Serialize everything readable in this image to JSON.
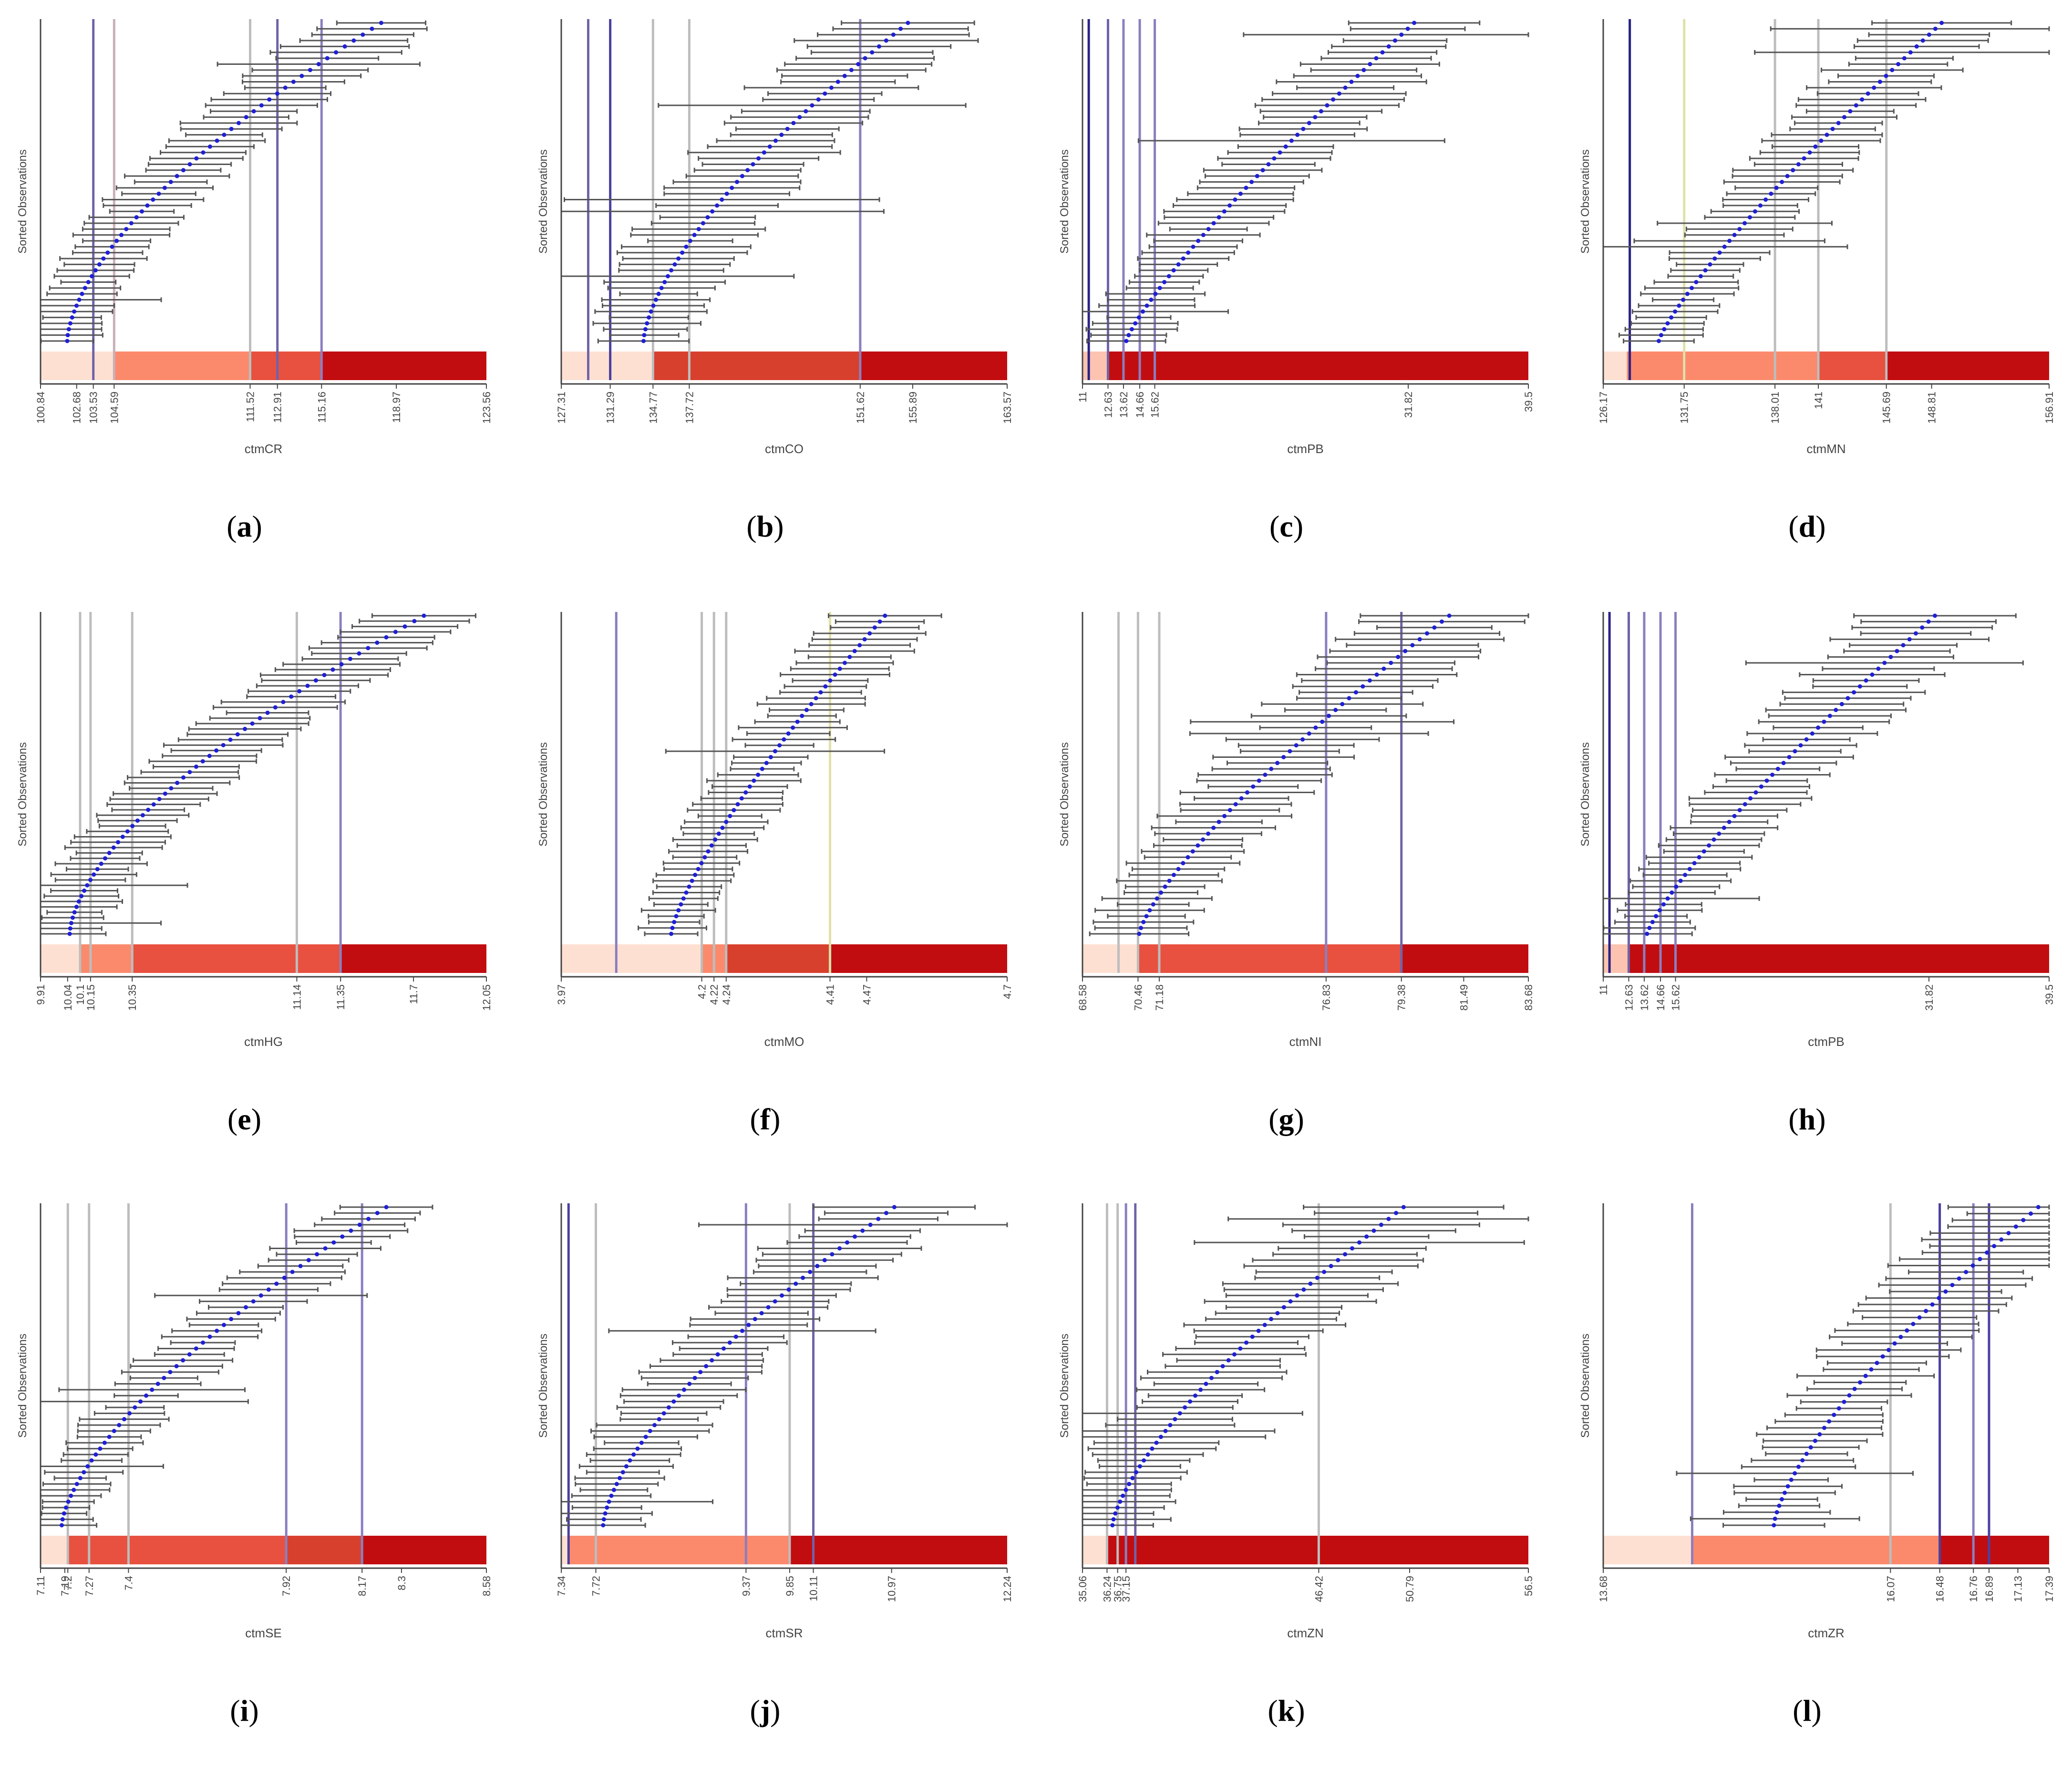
{
  "figure": {
    "title": "",
    "y_axis_label": "Sorted Observations"
  },
  "chart_data": [
    {
      "type": "errorbar",
      "panel_label": "a",
      "xlabel": "ctmCR",
      "ylabel": "Sorted Observations",
      "xlim": [
        100.84,
        123.56
      ],
      "x_ticks": [
        "100.84",
        "102.68",
        "103.53",
        "104.59",
        "111.52",
        "112.91",
        "115.16",
        "118.97",
        "123.56"
      ],
      "reference_lines": [
        {
          "value": 103.53,
          "color": "#6f63a8"
        },
        {
          "value": 104.59,
          "color": "#c9b0b8"
        },
        {
          "value": 111.52,
          "color": "#bdbdbd"
        },
        {
          "value": 112.91,
          "color": "#6f63a8"
        },
        {
          "value": 115.16,
          "color": "#8a7fc0"
        }
      ],
      "color_bands": [
        {
          "from": 100.84,
          "to": 104.59,
          "color": "#fee0d2"
        },
        {
          "from": 104.59,
          "to": 111.52,
          "color": "#fb8a6c"
        },
        {
          "from": 111.52,
          "to": 115.16,
          "color": "#e8513f"
        },
        {
          "from": 115.16,
          "to": 123.56,
          "color": "#c20d10"
        }
      ],
      "observations": {
        "count": 55,
        "min_mean": 102.2,
        "max_mean": 118.2,
        "mean_curvature": 1.6,
        "half_width": 2.0
      }
    },
    {
      "type": "errorbar",
      "panel_label": "b",
      "xlabel": "ctmCO",
      "ylabel": "Sorted Observations",
      "xlim": [
        127.31,
        163.57
      ],
      "x_ticks": [
        "127.31",
        "131.29",
        "134.77",
        "137.72",
        "151.62",
        "155.89",
        "163.57"
      ],
      "reference_lines": [
        {
          "value": 129.5,
          "color": "#6f63a8"
        },
        {
          "value": 131.29,
          "color": "#4a40a0"
        },
        {
          "value": 134.77,
          "color": "#bdbdbd"
        },
        {
          "value": 137.72,
          "color": "#bdbdbd"
        },
        {
          "value": 151.62,
          "color": "#8a7fc0"
        }
      ],
      "color_bands": [
        {
          "from": 127.31,
          "to": 134.77,
          "color": "#fee0d2"
        },
        {
          "from": 134.77,
          "to": 151.62,
          "color": "#d8402e"
        },
        {
          "from": 151.62,
          "to": 163.57,
          "color": "#c20d10"
        }
      ],
      "observations": {
        "count": 55,
        "min_mean": 134.0,
        "max_mean": 155.5,
        "mean_curvature": 1.5,
        "half_width": 4.5
      }
    },
    {
      "type": "errorbar",
      "panel_label": "c",
      "xlabel": "ctmPB",
      "ylabel": "Sorted Observations",
      "xlim": [
        11,
        39.5
      ],
      "x_ticks": [
        "11",
        "12.63",
        "13.62",
        "14.66",
        "15.62",
        "31.82",
        "39.5"
      ],
      "reference_lines": [
        {
          "value": 11.4,
          "color": "#2a2288"
        },
        {
          "value": 12.63,
          "color": "#6f63a8"
        },
        {
          "value": 13.62,
          "color": "#8a7fc0"
        },
        {
          "value": 14.66,
          "color": "#8a7fc0"
        },
        {
          "value": 15.62,
          "color": "#8a7fc0"
        }
      ],
      "color_bands": [
        {
          "from": 11,
          "to": 12.63,
          "color": "#fcc3b0"
        },
        {
          "from": 12.63,
          "to": 39.5,
          "color": "#c20d10"
        }
      ],
      "observations": {
        "count": 55,
        "min_mean": 13.8,
        "max_mean": 32.2,
        "mean_curvature": 1.2,
        "half_width": 3.0
      }
    },
    {
      "type": "errorbar",
      "panel_label": "d",
      "xlabel": "ctmMN",
      "ylabel": "Sorted Observations",
      "xlim": [
        126.17,
        156.91
      ],
      "x_ticks": [
        "126.17",
        "131.75",
        "138.01",
        "141",
        "145.69",
        "148.81",
        "156.91"
      ],
      "reference_lines": [
        {
          "value": 128.0,
          "color": "#2a2288"
        },
        {
          "value": 131.75,
          "color": "#e0e0a8"
        },
        {
          "value": 138.01,
          "color": "#bdbdbd"
        },
        {
          "value": 141,
          "color": "#bdbdbd"
        },
        {
          "value": 145.69,
          "color": "#bdbdbd"
        }
      ],
      "color_bands": [
        {
          "from": 126.17,
          "to": 127.8,
          "color": "#fee0d2"
        },
        {
          "from": 127.8,
          "to": 141,
          "color": "#fb8a6c"
        },
        {
          "from": 141,
          "to": 145.69,
          "color": "#e8513f"
        },
        {
          "from": 145.69,
          "to": 156.91,
          "color": "#c20d10"
        }
      ],
      "observations": {
        "count": 55,
        "min_mean": 130.0,
        "max_mean": 149.5,
        "mean_curvature": 1.2,
        "half_width": 3.0
      }
    },
    {
      "type": "errorbar",
      "panel_label": "e",
      "xlabel": "ctmHG",
      "ylabel": "Sorted Observations",
      "xlim": [
        9.91,
        12.05
      ],
      "x_ticks": [
        "9.91",
        "10.04",
        "10.1",
        "10.15",
        "10.35",
        "11.14",
        "11.35",
        "11.7",
        "12.05"
      ],
      "reference_lines": [
        {
          "value": 10.1,
          "color": "#bdbdbd"
        },
        {
          "value": 10.15,
          "color": "#bdbdbd"
        },
        {
          "value": 10.35,
          "color": "#bdbdbd"
        },
        {
          "value": 11.14,
          "color": "#bdbdbd"
        },
        {
          "value": 11.35,
          "color": "#8a7fc0"
        }
      ],
      "color_bands": [
        {
          "from": 9.91,
          "to": 10.1,
          "color": "#fee0d2"
        },
        {
          "from": 10.1,
          "to": 10.35,
          "color": "#fb8a6c"
        },
        {
          "from": 10.35,
          "to": 11.35,
          "color": "#e8513f"
        },
        {
          "from": 11.35,
          "to": 12.05,
          "color": "#c20d10"
        }
      ],
      "observations": {
        "count": 60,
        "min_mean": 10.05,
        "max_mean": 11.75,
        "mean_curvature": 1.6,
        "half_width": 0.2
      }
    },
    {
      "type": "errorbar",
      "panel_label": "f",
      "xlabel": "ctmMO",
      "ylabel": "Sorted Observations",
      "xlim": [
        3.97,
        4.7
      ],
      "x_ticks": [
        "3.97",
        "4.2",
        "4.22",
        "4.24",
        "4.41",
        "4.47",
        "4.7"
      ],
      "reference_lines": [
        {
          "value": 4.06,
          "color": "#8a7fc0"
        },
        {
          "value": 4.2,
          "color": "#bdbdbd"
        },
        {
          "value": 4.22,
          "color": "#bdbdbd"
        },
        {
          "value": 4.24,
          "color": "#bdbdbd"
        },
        {
          "value": 4.41,
          "color": "#e0e0a8"
        }
      ],
      "color_bands": [
        {
          "from": 3.97,
          "to": 4.2,
          "color": "#fee0d2"
        },
        {
          "from": 4.2,
          "to": 4.24,
          "color": "#fb8a6c"
        },
        {
          "from": 4.24,
          "to": 4.41,
          "color": "#d8402e"
        },
        {
          "from": 4.41,
          "to": 4.7,
          "color": "#c20d10"
        }
      ],
      "observations": {
        "count": 55,
        "min_mean": 4.15,
        "max_mean": 4.5,
        "mean_curvature": 1.3,
        "half_width": 0.06
      }
    },
    {
      "type": "errorbar",
      "panel_label": "g",
      "xlabel": "ctmNI",
      "ylabel": "Sorted Observations",
      "xlim": [
        68.58,
        83.68
      ],
      "x_ticks": [
        "68.58",
        "70.46",
        "71.18",
        "76.83",
        "79.38",
        "81.49",
        "83.68"
      ],
      "reference_lines": [
        {
          "value": 69.8,
          "color": "#bdbdbd"
        },
        {
          "value": 70.46,
          "color": "#bdbdbd"
        },
        {
          "value": 71.18,
          "color": "#bdbdbd"
        },
        {
          "value": 76.83,
          "color": "#8a7fc0"
        },
        {
          "value": 79.38,
          "color": "#6f63a8"
        }
      ],
      "color_bands": [
        {
          "from": 68.58,
          "to": 70.46,
          "color": "#fee0d2"
        },
        {
          "from": 70.46,
          "to": 79.38,
          "color": "#e8513f"
        },
        {
          "from": 79.38,
          "to": 83.68,
          "color": "#c20d10"
        }
      ],
      "observations": {
        "count": 55,
        "min_mean": 70.5,
        "max_mean": 81.0,
        "mean_curvature": 1.3,
        "half_width": 1.8
      }
    },
    {
      "type": "errorbar",
      "panel_label": "h",
      "xlabel": "ctmPB",
      "ylabel": "Sorted Observations",
      "xlim": [
        11,
        39.5
      ],
      "x_ticks": [
        "11",
        "12.63",
        "13.62",
        "14.66",
        "15.62",
        "31.82",
        "39.5"
      ],
      "reference_lines": [
        {
          "value": 11.4,
          "color": "#2a2288"
        },
        {
          "value": 12.63,
          "color": "#6f63a8"
        },
        {
          "value": 13.62,
          "color": "#8a7fc0"
        },
        {
          "value": 14.66,
          "color": "#8a7fc0"
        },
        {
          "value": 15.62,
          "color": "#8a7fc0"
        }
      ],
      "color_bands": [
        {
          "from": 11,
          "to": 12.63,
          "color": "#fcc3b0"
        },
        {
          "from": 12.63,
          "to": 39.5,
          "color": "#c20d10"
        }
      ],
      "observations": {
        "count": 55,
        "min_mean": 13.8,
        "max_mean": 32.2,
        "mean_curvature": 1.2,
        "half_width": 3.0
      }
    },
    {
      "type": "errorbar",
      "panel_label": "i",
      "xlabel": "ctmSE",
      "ylabel": "Sorted Observations",
      "xlim": [
        7.11,
        8.58
      ],
      "x_ticks": [
        "7.11",
        "7.19",
        "7.2",
        "7.27",
        "7.4",
        "7.92",
        "8.17",
        "8.3",
        "8.58"
      ],
      "reference_lines": [
        {
          "value": 7.2,
          "color": "#bdbdbd"
        },
        {
          "value": 7.27,
          "color": "#bdbdbd"
        },
        {
          "value": 7.4,
          "color": "#bdbdbd"
        },
        {
          "value": 7.92,
          "color": "#8a7fc0"
        },
        {
          "value": 8.17,
          "color": "#8a7fc0"
        }
      ],
      "color_bands": [
        {
          "from": 7.11,
          "to": 7.2,
          "color": "#fee0d2"
        },
        {
          "from": 7.2,
          "to": 7.92,
          "color": "#e8513f"
        },
        {
          "from": 7.92,
          "to": 8.17,
          "color": "#d8402e"
        },
        {
          "from": 8.17,
          "to": 8.58,
          "color": "#c20d10"
        }
      ],
      "observations": {
        "count": 55,
        "min_mean": 7.18,
        "max_mean": 8.25,
        "mean_curvature": 1.5,
        "half_width": 0.12
      }
    },
    {
      "type": "errorbar",
      "panel_label": "j",
      "xlabel": "ctmSR",
      "ylabel": "Sorted Observations",
      "xlim": [
        7.34,
        12.24
      ],
      "x_ticks": [
        "7.34",
        "7.72",
        "9.37",
        "9.85",
        "10.11",
        "10.97",
        "12.24"
      ],
      "reference_lines": [
        {
          "value": 7.42,
          "color": "#4a40a0"
        },
        {
          "value": 7.72,
          "color": "#bdbdbd"
        },
        {
          "value": 9.37,
          "color": "#8a7fc0"
        },
        {
          "value": 9.85,
          "color": "#bdbdbd"
        },
        {
          "value": 10.11,
          "color": "#6f63a8"
        }
      ],
      "color_bands": [
        {
          "from": 7.34,
          "to": 7.42,
          "color": "#fee0d2"
        },
        {
          "from": 7.42,
          "to": 9.85,
          "color": "#fb8a6c"
        },
        {
          "from": 9.85,
          "to": 12.24,
          "color": "#c20d10"
        }
      ],
      "observations": {
        "count": 55,
        "min_mean": 7.8,
        "max_mean": 11.0,
        "mean_curvature": 1.5,
        "half_width": 0.55
      }
    },
    {
      "type": "errorbar",
      "panel_label": "k",
      "xlabel": "ctmZN",
      "ylabel": "Sorted Observations",
      "xlim": [
        35.06,
        56.5
      ],
      "x_ticks": [
        "35.06",
        "36.24",
        "36.75",
        "37.15",
        "46.42",
        "50.79",
        "56.5"
      ],
      "reference_lines": [
        {
          "value": 36.24,
          "color": "#bdbdbd"
        },
        {
          "value": 36.75,
          "color": "#bdbdbd"
        },
        {
          "value": 37.15,
          "color": "#8a7fc0"
        },
        {
          "value": 37.6,
          "color": "#6f63a8"
        },
        {
          "value": 46.42,
          "color": "#bdbdbd"
        }
      ],
      "color_bands": [
        {
          "from": 35.06,
          "to": 36.24,
          "color": "#fee0d2"
        },
        {
          "from": 36.24,
          "to": 56.5,
          "color": "#c20d10"
        }
      ],
      "observations": {
        "count": 55,
        "min_mean": 36.5,
        "max_mean": 50.5,
        "mean_curvature": 1.4,
        "half_width": 2.8
      }
    },
    {
      "type": "errorbar",
      "panel_label": "l",
      "xlabel": "ctmZR",
      "ylabel": "Sorted Observations",
      "xlim": [
        13.68,
        17.39
      ],
      "x_ticks": [
        "13.68",
        "16.07",
        "16.48",
        "16.76",
        "16.89",
        "17.13",
        "17.39"
      ],
      "reference_lines": [
        {
          "value": 14.42,
          "color": "#8a7fc0"
        },
        {
          "value": 16.07,
          "color": "#bdbdbd"
        },
        {
          "value": 16.48,
          "color": "#4a40a0"
        },
        {
          "value": 16.76,
          "color": "#8a7fc0"
        },
        {
          "value": 16.89,
          "color": "#4a40a0"
        }
      ],
      "color_bands": [
        {
          "from": 13.68,
          "to": 14.42,
          "color": "#fee0d2"
        },
        {
          "from": 14.42,
          "to": 16.48,
          "color": "#fb8a6c"
        },
        {
          "from": 16.48,
          "to": 17.39,
          "color": "#c20d10"
        }
      ],
      "observations": {
        "count": 50,
        "min_mean": 15.1,
        "max_mean": 17.3,
        "mean_curvature": 1.4,
        "half_width": 0.45
      }
    }
  ],
  "colors": {
    "whisker": "#555555",
    "point": "#1f1fd8",
    "axis": "#444444",
    "tick_text": "#444444",
    "axis_title": "#444444",
    "panel_label": "#000000"
  }
}
